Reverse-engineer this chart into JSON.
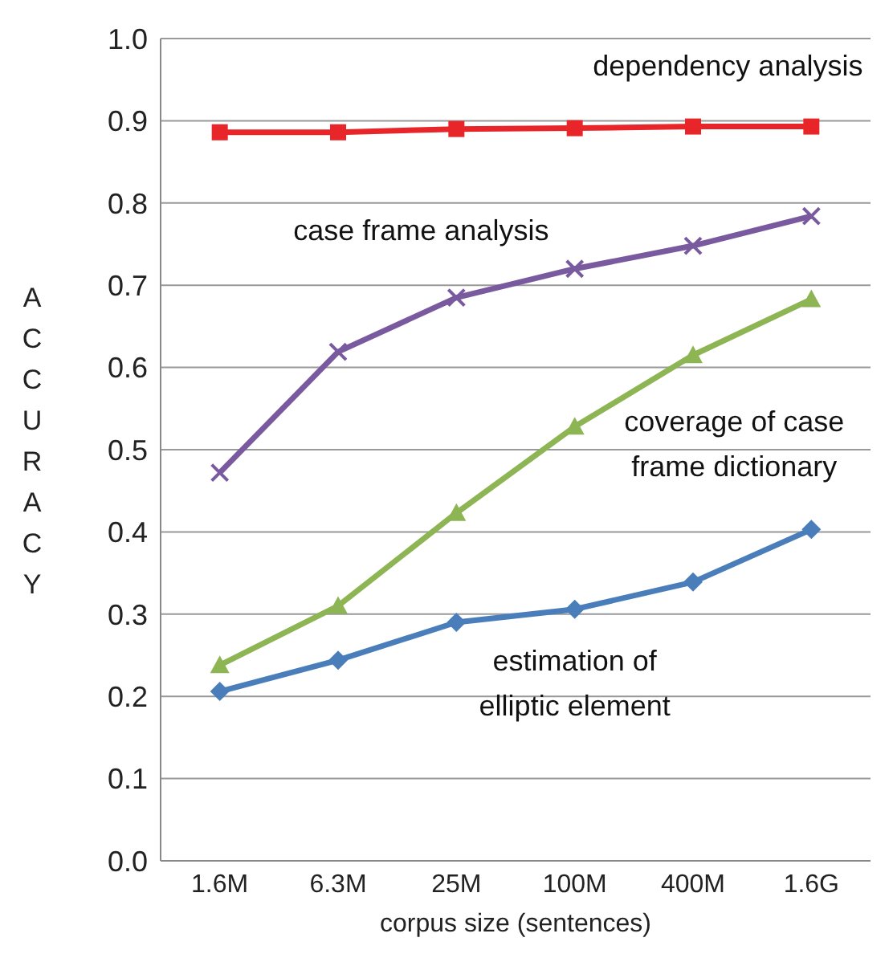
{
  "chart_data": {
    "type": "line",
    "xlabel": "corpus size (sentences)",
    "ylabel": "ACCURACY",
    "categories": [
      "1.6M",
      "6.3M",
      "25M",
      "100M",
      "400M",
      "1.6G"
    ],
    "series": [
      {
        "name": "dependency analysis",
        "color": "#e8262a",
        "marker": "square",
        "values": [
          0.886,
          0.886,
          0.89,
          0.891,
          0.893,
          0.893
        ]
      },
      {
        "name": "case frame analysis",
        "color": "#7a5a9f",
        "marker": "cross",
        "values": [
          0.472,
          0.619,
          0.685,
          0.72,
          0.748,
          0.784
        ]
      },
      {
        "name": "coverage of case frame dictionary",
        "color": "#8db554",
        "marker": "triangle",
        "values": [
          0.238,
          0.31,
          0.423,
          0.528,
          0.615,
          0.683
        ]
      },
      {
        "name": "estimation of elliptic element",
        "color": "#4a7ebb",
        "marker": "diamond",
        "values": [
          0.206,
          0.244,
          0.29,
          0.306,
          0.339,
          0.403
        ]
      }
    ],
    "ylim": [
      0,
      1
    ],
    "yticks": [
      {
        "value": 0,
        "label": "0.0"
      },
      0.1,
      0.2,
      0.3,
      0.4,
      0.5,
      0.6,
      0.7,
      0.8,
      0.9,
      {
        "value": 1,
        "label": "1.0"
      }
    ],
    "grid": "y",
    "legend": false,
    "line_style": "solid"
  }
}
